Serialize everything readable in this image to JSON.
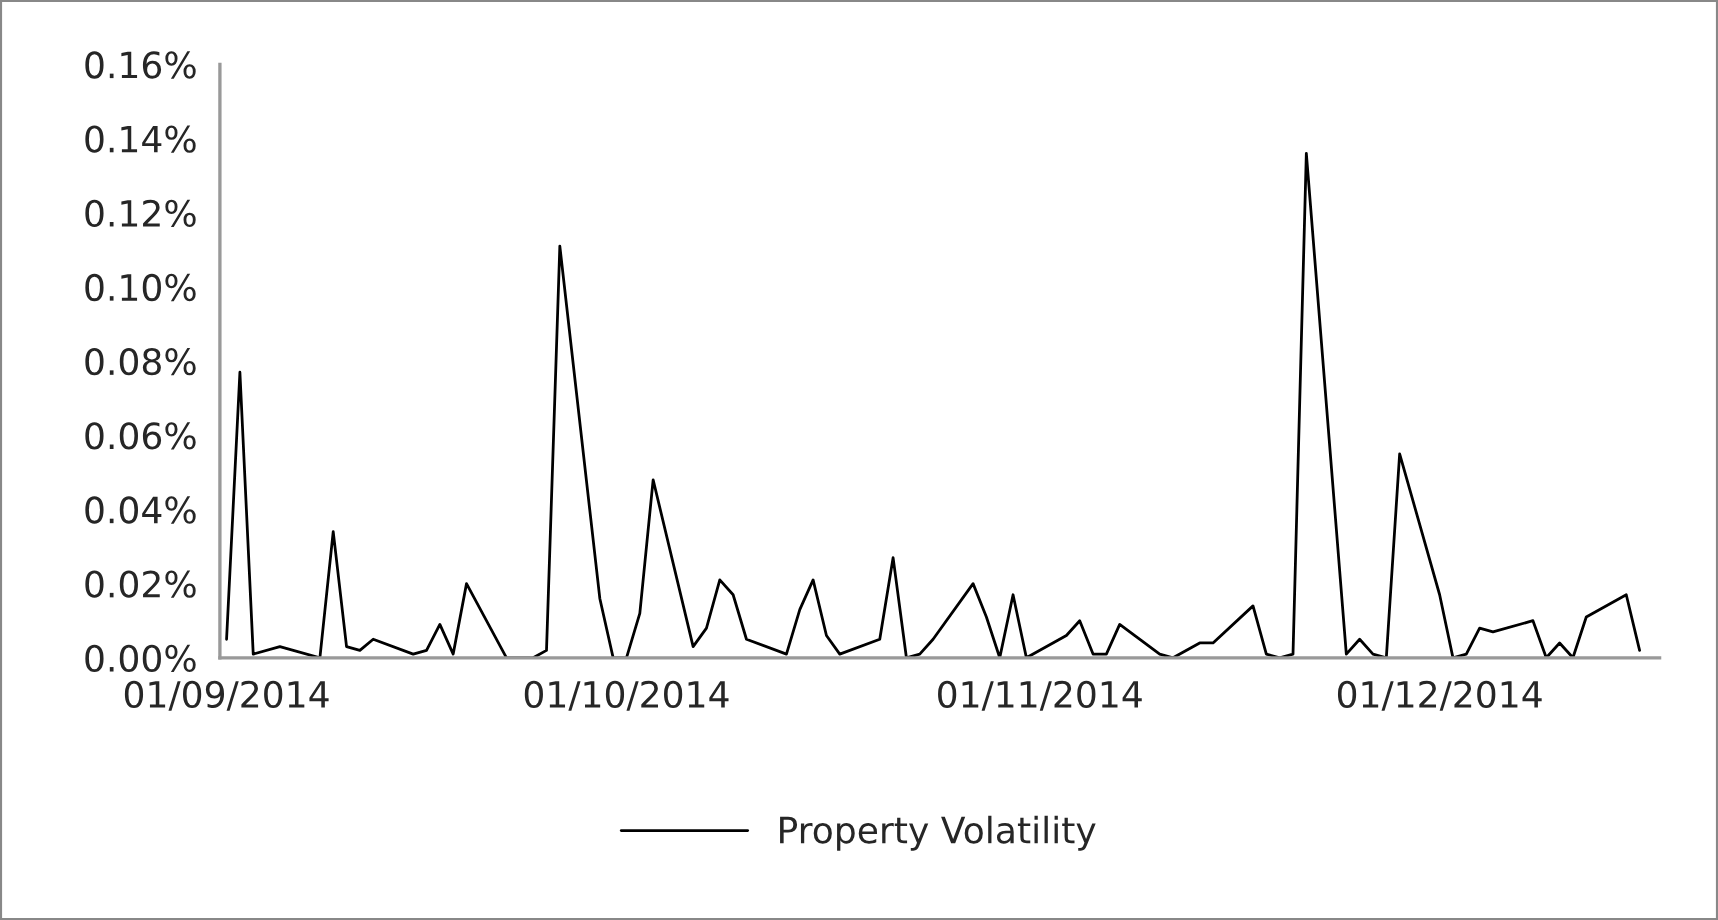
{
  "chart_data": {
    "type": "line",
    "x": [
      "2014-09-01",
      "2014-09-02",
      "2014-09-03",
      "2014-09-05",
      "2014-09-08",
      "2014-09-09",
      "2014-09-10",
      "2014-09-11",
      "2014-09-12",
      "2014-09-15",
      "2014-09-16",
      "2014-09-17",
      "2014-09-18",
      "2014-09-19",
      "2014-09-22",
      "2014-09-24",
      "2014-09-25",
      "2014-09-26",
      "2014-09-29",
      "2014-09-30",
      "2014-10-01",
      "2014-10-02",
      "2014-10-03",
      "2014-10-06",
      "2014-10-07",
      "2014-10-08",
      "2014-10-09",
      "2014-10-10",
      "2014-10-13",
      "2014-10-14",
      "2014-10-15",
      "2014-10-16",
      "2014-10-17",
      "2014-10-20",
      "2014-10-21",
      "2014-10-22",
      "2014-10-23",
      "2014-10-24",
      "2014-10-27",
      "2014-10-28",
      "2014-10-29",
      "2014-10-30",
      "2014-10-31",
      "2014-11-03",
      "2014-11-04",
      "2014-11-05",
      "2014-11-06",
      "2014-11-07",
      "2014-11-10",
      "2014-11-11",
      "2014-11-13",
      "2014-11-14",
      "2014-11-17",
      "2014-11-18",
      "2014-11-19",
      "2014-11-20",
      "2014-11-21",
      "2014-11-24",
      "2014-11-25",
      "2014-11-26",
      "2014-11-27",
      "2014-11-28",
      "2014-12-01",
      "2014-12-02",
      "2014-12-03",
      "2014-12-04",
      "2014-12-05",
      "2014-12-08",
      "2014-12-09",
      "2014-12-10",
      "2014-12-11",
      "2014-12-12",
      "2014-12-15",
      "2014-12-16"
    ],
    "series": [
      {
        "name": "Property Volatility",
        "color": "#000000",
        "values": [
          0.005,
          0.077,
          0.001,
          0.003,
          0.0,
          0.034,
          0.003,
          0.002,
          0.005,
          0.001,
          0.002,
          0.009,
          0.001,
          0.02,
          0.0,
          0.0,
          0.002,
          0.111,
          0.016,
          0.0,
          0.0,
          0.012,
          0.048,
          0.003,
          0.008,
          0.021,
          0.017,
          0.005,
          0.001,
          0.013,
          0.021,
          0.006,
          0.001,
          0.005,
          0.027,
          0.0,
          0.001,
          0.005,
          0.02,
          0.011,
          0.0,
          0.017,
          0.0,
          0.006,
          0.01,
          0.001,
          0.001,
          0.009,
          0.001,
          0.0,
          0.004,
          0.004,
          0.014,
          0.001,
          0.0,
          0.001,
          0.136,
          0.001,
          0.005,
          0.001,
          0.0,
          0.055,
          0.017,
          0.0,
          0.001,
          0.008,
          0.007,
          0.01,
          0.0,
          0.004,
          0.0,
          0.011,
          0.017,
          0.002
        ]
      }
    ],
    "xlim": [
      "2014-08-31T12:00",
      "2014-12-17T12:00"
    ],
    "xticks": [
      {
        "value": "2014-09-01",
        "label": "01/09/2014"
      },
      {
        "value": "2014-10-01",
        "label": "01/10/2014"
      },
      {
        "value": "2014-11-01",
        "label": "01/11/2014"
      },
      {
        "value": "2014-12-01",
        "label": "01/12/2014"
      }
    ],
    "ylim": [
      0,
      0.16
    ],
    "yticks": [
      {
        "value": 0,
        "label": "0.00%"
      },
      {
        "value": 0.02,
        "label": "0.02%"
      },
      {
        "value": 0.04,
        "label": "0.04%"
      },
      {
        "value": 0.06,
        "label": "0.06%"
      },
      {
        "value": 0.08,
        "label": "0.08%"
      },
      {
        "value": 0.1,
        "label": "0.10%"
      },
      {
        "value": 0.12,
        "label": "0.12%"
      },
      {
        "value": 0.14,
        "label": "0.14%"
      },
      {
        "value": 0.16,
        "label": "0.16%"
      }
    ],
    "grid": false,
    "legend": "bottom",
    "line_style": "solid"
  }
}
